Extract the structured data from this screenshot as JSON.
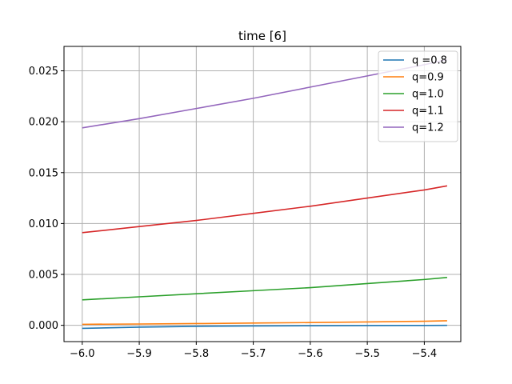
{
  "chart_data": {
    "type": "line",
    "title": "time [6]",
    "xlabel": "",
    "ylabel": "",
    "xlim": [
      -6.032,
      -5.336
    ],
    "ylim": [
      -0.0016,
      0.0274
    ],
    "xticks": [
      -6.0,
      -5.9,
      -5.8,
      -5.7,
      -5.6,
      -5.5,
      -5.4
    ],
    "xtick_labels": [
      "−6.0",
      "−5.9",
      "−5.8",
      "−5.7",
      "−5.6",
      "−5.5",
      "−5.4"
    ],
    "yticks": [
      0.0,
      0.005,
      0.01,
      0.015,
      0.02,
      0.025
    ],
    "ytick_labels": [
      "0.000",
      "0.005",
      "0.010",
      "0.015",
      "0.020",
      "0.025"
    ],
    "grid": true,
    "legend_position": "top-right",
    "x": [
      -6.0,
      -5.9,
      -5.8,
      -5.7,
      -5.6,
      -5.5,
      -5.4,
      -5.36
    ],
    "series": [
      {
        "name": "q =0.8",
        "color": "#1f77b4",
        "values": [
          -0.0003,
          -0.00018,
          -0.0001,
          -6e-05,
          -4e-05,
          -2e-05,
          -1e-05,
          0.0
        ]
      },
      {
        "name": "q=0.9",
        "color": "#ff7f0e",
        "values": [
          0.0001,
          0.00013,
          0.00017,
          0.00022,
          0.00027,
          0.00033,
          0.0004,
          0.00045
        ]
      },
      {
        "name": "q=1.0",
        "color": "#2ca02c",
        "values": [
          0.0025,
          0.0028,
          0.0031,
          0.0034,
          0.0037,
          0.0041,
          0.0045,
          0.0047
        ]
      },
      {
        "name": "q=1.1",
        "color": "#d62728",
        "values": [
          0.0091,
          0.0097,
          0.0103,
          0.011,
          0.0117,
          0.0125,
          0.0133,
          0.0137
        ]
      },
      {
        "name": "q=1.2",
        "color": "#9467bd",
        "values": [
          0.0194,
          0.0203,
          0.0213,
          0.0223,
          0.0234,
          0.0245,
          0.0256,
          0.0261
        ]
      }
    ]
  }
}
